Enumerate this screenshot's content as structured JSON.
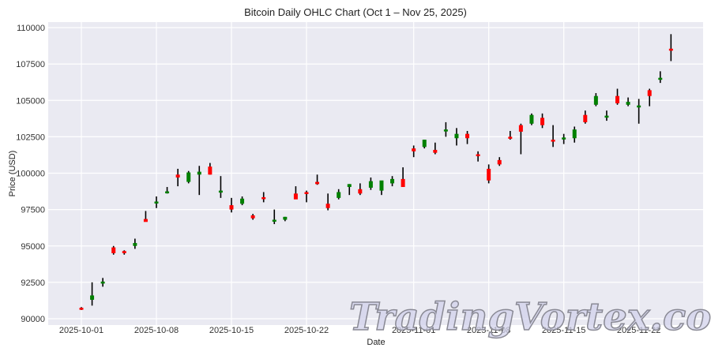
{
  "chart_data": {
    "type": "ohlc",
    "title": "Bitcoin Daily OHLC Chart (Oct 1 – Nov 25, 2025)",
    "xlabel": "Date",
    "ylabel": "Price (USD)",
    "ylim": [
      89800,
      110400
    ],
    "yticks": [
      90000,
      92500,
      95000,
      97500,
      100000,
      102500,
      105000,
      107500,
      110000
    ],
    "xticks": [
      "2025-10-01",
      "2025-10-08",
      "2025-10-15",
      "2025-10-22",
      "2025-11-01",
      "2025-11-08",
      "2025-11-15",
      "2025-11-22"
    ],
    "grid": true,
    "colors": {
      "up": "#008000",
      "down": "#ff0000",
      "wick": "#000000",
      "background": "#eaeaf2",
      "grid": "#ffffff"
    },
    "data": [
      {
        "date": "2025-10-01",
        "open": 90750,
        "high": 90800,
        "low": 90600,
        "close": 90650
      },
      {
        "date": "2025-10-02",
        "open": 91300,
        "high": 92500,
        "low": 90900,
        "close": 91600
      },
      {
        "date": "2025-10-03",
        "open": 92500,
        "high": 92800,
        "low": 92200,
        "close": 92550
      },
      {
        "date": "2025-10-04",
        "open": 94900,
        "high": 95000,
        "low": 94400,
        "close": 94500
      },
      {
        "date": "2025-10-05",
        "open": 94650,
        "high": 94700,
        "low": 94400,
        "close": 94500
      },
      {
        "date": "2025-10-06",
        "open": 95000,
        "high": 95500,
        "low": 94800,
        "close": 95200
      },
      {
        "date": "2025-10-07",
        "open": 96850,
        "high": 97400,
        "low": 96700,
        "close": 96650
      },
      {
        "date": "2025-10-08",
        "open": 98000,
        "high": 98400,
        "low": 97600,
        "close": 98050
      },
      {
        "date": "2025-10-09",
        "open": 98700,
        "high": 99050,
        "low": 98600,
        "close": 98750
      },
      {
        "date": "2025-10-10",
        "open": 99900,
        "high": 100300,
        "low": 99100,
        "close": 99700
      },
      {
        "date": "2025-10-11",
        "open": 99400,
        "high": 100150,
        "low": 99300,
        "close": 100050
      },
      {
        "date": "2025-10-12",
        "open": 99900,
        "high": 100500,
        "low": 98500,
        "close": 100100
      },
      {
        "date": "2025-10-13",
        "open": 100450,
        "high": 100700,
        "low": 99900,
        "close": 99900
      },
      {
        "date": "2025-10-14",
        "open": 98700,
        "high": 99800,
        "low": 98300,
        "close": 98800
      },
      {
        "date": "2025-10-15",
        "open": 97800,
        "high": 98300,
        "low": 97300,
        "close": 97500
      },
      {
        "date": "2025-10-16",
        "open": 97900,
        "high": 98400,
        "low": 97800,
        "close": 98250
      },
      {
        "date": "2025-10-17",
        "open": 97100,
        "high": 97200,
        "low": 96800,
        "close": 96900
      },
      {
        "date": "2025-10-18",
        "open": 98350,
        "high": 98700,
        "low": 98000,
        "close": 98300
      },
      {
        "date": "2025-10-19",
        "open": 96700,
        "high": 97500,
        "low": 96500,
        "close": 96800
      },
      {
        "date": "2025-10-20",
        "open": 96800,
        "high": 97000,
        "low": 96700,
        "close": 97000
      },
      {
        "date": "2025-10-21",
        "open": 98600,
        "high": 99100,
        "low": 98300,
        "close": 98200
      },
      {
        "date": "2025-10-22",
        "open": 98700,
        "high": 98800,
        "low": 98000,
        "close": 98600
      },
      {
        "date": "2025-10-23",
        "open": 99400,
        "high": 99900,
        "low": 99200,
        "close": 99250
      },
      {
        "date": "2025-10-24",
        "open": 97900,
        "high": 98600,
        "low": 97450,
        "close": 97600
      },
      {
        "date": "2025-10-25",
        "open": 98300,
        "high": 98900,
        "low": 98200,
        "close": 98700
      },
      {
        "date": "2025-10-26",
        "open": 99050,
        "high": 99250,
        "low": 98500,
        "close": 99250
      },
      {
        "date": "2025-10-27",
        "open": 98900,
        "high": 99300,
        "low": 98500,
        "close": 98600
      },
      {
        "date": "2025-10-28",
        "open": 99000,
        "high": 99700,
        "low": 98850,
        "close": 99450
      },
      {
        "date": "2025-10-29",
        "open": 98800,
        "high": 99400,
        "low": 98500,
        "close": 99500
      },
      {
        "date": "2025-10-30",
        "open": 99300,
        "high": 99800,
        "low": 99100,
        "close": 99600
      },
      {
        "date": "2025-10-31",
        "open": 99600,
        "high": 100400,
        "low": 99100,
        "close": 99050
      },
      {
        "date": "2025-11-01",
        "open": 101700,
        "high": 101900,
        "low": 101100,
        "close": 101500
      },
      {
        "date": "2025-11-02",
        "open": 101800,
        "high": 102300,
        "low": 101700,
        "close": 102300
      },
      {
        "date": "2025-11-03",
        "open": 101600,
        "high": 102100,
        "low": 101300,
        "close": 101400
      },
      {
        "date": "2025-11-04",
        "open": 102900,
        "high": 103500,
        "low": 102500,
        "close": 103000
      },
      {
        "date": "2025-11-05",
        "open": 102400,
        "high": 103100,
        "low": 101900,
        "close": 102700
      },
      {
        "date": "2025-11-06",
        "open": 102700,
        "high": 102900,
        "low": 102000,
        "close": 102400
      },
      {
        "date": "2025-11-07",
        "open": 101300,
        "high": 101500,
        "low": 100800,
        "close": 101250
      },
      {
        "date": "2025-11-08",
        "open": 100300,
        "high": 100600,
        "low": 99300,
        "close": 99500
      },
      {
        "date": "2025-11-09",
        "open": 100900,
        "high": 101100,
        "low": 100500,
        "close": 100600
      },
      {
        "date": "2025-11-10",
        "open": 102500,
        "high": 102900,
        "low": 102300,
        "close": 102450
      },
      {
        "date": "2025-11-11",
        "open": 103300,
        "high": 103400,
        "low": 101300,
        "close": 102850
      },
      {
        "date": "2025-11-12",
        "open": 103400,
        "high": 104100,
        "low": 103300,
        "close": 104000
      },
      {
        "date": "2025-11-13",
        "open": 103800,
        "high": 104100,
        "low": 103100,
        "close": 103300
      },
      {
        "date": "2025-11-14",
        "open": 102300,
        "high": 103300,
        "low": 101800,
        "close": 102200
      },
      {
        "date": "2025-11-15",
        "open": 102400,
        "high": 102700,
        "low": 102000,
        "close": 102450
      },
      {
        "date": "2025-11-16",
        "open": 102400,
        "high": 103200,
        "low": 102100,
        "close": 103000
      },
      {
        "date": "2025-11-17",
        "open": 104000,
        "high": 104300,
        "low": 103400,
        "close": 103500
      },
      {
        "date": "2025-11-18",
        "open": 104700,
        "high": 105500,
        "low": 104600,
        "close": 105300
      },
      {
        "date": "2025-11-19",
        "open": 103900,
        "high": 104300,
        "low": 103600,
        "close": 103950
      },
      {
        "date": "2025-11-20",
        "open": 105300,
        "high": 105800,
        "low": 104700,
        "close": 104800
      },
      {
        "date": "2025-11-21",
        "open": 104700,
        "high": 105200,
        "low": 104600,
        "close": 104900
      },
      {
        "date": "2025-11-22",
        "open": 104600,
        "high": 105100,
        "low": 103400,
        "close": 104650
      },
      {
        "date": "2025-11-23",
        "open": 105700,
        "high": 105800,
        "low": 104600,
        "close": 105300
      },
      {
        "date": "2025-11-24",
        "open": 106550,
        "high": 107000,
        "low": 106200,
        "close": 106550
      },
      {
        "date": "2025-11-25",
        "open": 108550,
        "high": 109550,
        "low": 107700,
        "close": 108450
      }
    ]
  },
  "watermark": {
    "text": "TradingVortex.com"
  }
}
